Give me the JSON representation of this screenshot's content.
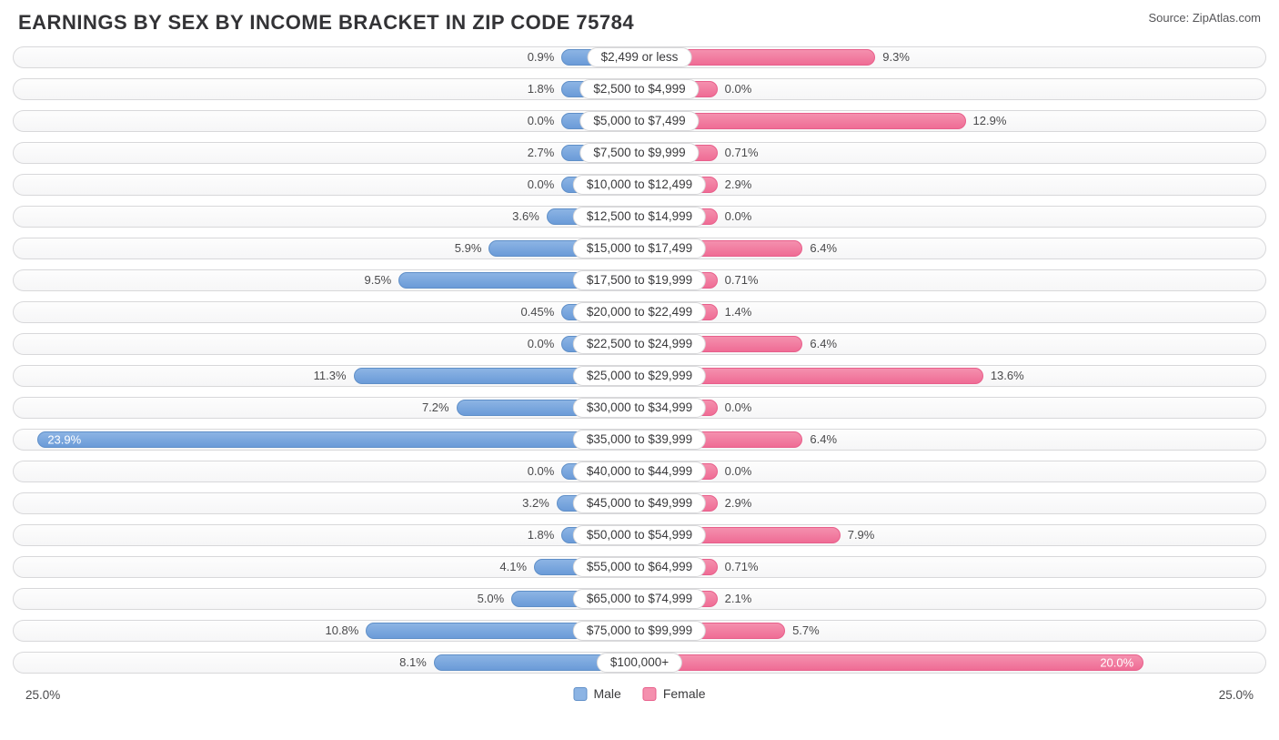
{
  "title": "EARNINGS BY SEX BY INCOME BRACKET IN ZIP CODE 75784",
  "source": "Source: ZipAtlas.com",
  "chart": {
    "type": "diverging-bar",
    "axis_max": 25.0,
    "axis_label_left": "25.0%",
    "axis_label_right": "25.0%",
    "min_bar_pct": 3.0,
    "row_bg_border": "#d8d8da",
    "row_bg_fill_top": "#fdfdfd",
    "row_bg_fill_bot": "#f6f6f7",
    "label_pill_bg": "#ffffff",
    "label_pill_border": "#d8d8da",
    "text_color": "#4a4a4c",
    "title_color": "#333336",
    "inside_threshold": 18.0,
    "male": {
      "fill": "#8cb4e4",
      "fill_dark": "#6b9bd8",
      "border": "#5f8fc8",
      "label": "Male"
    },
    "female": {
      "fill": "#f490ae",
      "fill_dark": "#ef6c95",
      "border": "#e85f8b",
      "label": "Female"
    },
    "rows": [
      {
        "category": "$2,499 or less",
        "male": 0.9,
        "male_label": "0.9%",
        "female": 9.3,
        "female_label": "9.3%"
      },
      {
        "category": "$2,500 to $4,999",
        "male": 1.8,
        "male_label": "1.8%",
        "female": 0.0,
        "female_label": "0.0%"
      },
      {
        "category": "$5,000 to $7,499",
        "male": 0.0,
        "male_label": "0.0%",
        "female": 12.9,
        "female_label": "12.9%"
      },
      {
        "category": "$7,500 to $9,999",
        "male": 2.7,
        "male_label": "2.7%",
        "female": 0.71,
        "female_label": "0.71%"
      },
      {
        "category": "$10,000 to $12,499",
        "male": 0.0,
        "male_label": "0.0%",
        "female": 2.9,
        "female_label": "2.9%"
      },
      {
        "category": "$12,500 to $14,999",
        "male": 3.6,
        "male_label": "3.6%",
        "female": 0.0,
        "female_label": "0.0%"
      },
      {
        "category": "$15,000 to $17,499",
        "male": 5.9,
        "male_label": "5.9%",
        "female": 6.4,
        "female_label": "6.4%"
      },
      {
        "category": "$17,500 to $19,999",
        "male": 9.5,
        "male_label": "9.5%",
        "female": 0.71,
        "female_label": "0.71%"
      },
      {
        "category": "$20,000 to $22,499",
        "male": 0.45,
        "male_label": "0.45%",
        "female": 1.4,
        "female_label": "1.4%"
      },
      {
        "category": "$22,500 to $24,999",
        "male": 0.0,
        "male_label": "0.0%",
        "female": 6.4,
        "female_label": "6.4%"
      },
      {
        "category": "$25,000 to $29,999",
        "male": 11.3,
        "male_label": "11.3%",
        "female": 13.6,
        "female_label": "13.6%"
      },
      {
        "category": "$30,000 to $34,999",
        "male": 7.2,
        "male_label": "7.2%",
        "female": 0.0,
        "female_label": "0.0%"
      },
      {
        "category": "$35,000 to $39,999",
        "male": 23.9,
        "male_label": "23.9%",
        "female": 6.4,
        "female_label": "6.4%"
      },
      {
        "category": "$40,000 to $44,999",
        "male": 0.0,
        "male_label": "0.0%",
        "female": 0.0,
        "female_label": "0.0%"
      },
      {
        "category": "$45,000 to $49,999",
        "male": 3.2,
        "male_label": "3.2%",
        "female": 2.9,
        "female_label": "2.9%"
      },
      {
        "category": "$50,000 to $54,999",
        "male": 1.8,
        "male_label": "1.8%",
        "female": 7.9,
        "female_label": "7.9%"
      },
      {
        "category": "$55,000 to $64,999",
        "male": 4.1,
        "male_label": "4.1%",
        "female": 0.71,
        "female_label": "0.71%"
      },
      {
        "category": "$65,000 to $74,999",
        "male": 5.0,
        "male_label": "5.0%",
        "female": 2.1,
        "female_label": "2.1%"
      },
      {
        "category": "$75,000 to $99,999",
        "male": 10.8,
        "male_label": "10.8%",
        "female": 5.7,
        "female_label": "5.7%"
      },
      {
        "category": "$100,000+",
        "male": 8.1,
        "male_label": "8.1%",
        "female": 20.0,
        "female_label": "20.0%"
      }
    ]
  }
}
